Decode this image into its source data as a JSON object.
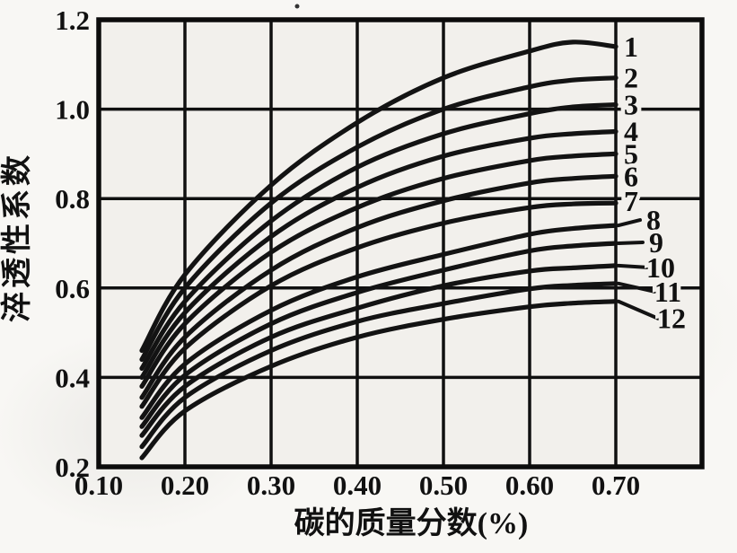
{
  "figure_title": "",
  "colors": {
    "curve": "#131313",
    "grid": "#101010",
    "border": "#0c0c0c",
    "plot_fill": "#f2f0ec",
    "background": "#f8f7f4",
    "text": "#111111"
  },
  "chart_data": {
    "type": "line",
    "title": "",
    "xlabel": "碳的质量分数(%)",
    "ylabel": "淬透性系数",
    "xlim": [
      0.1,
      0.8
    ],
    "ylim": [
      0.2,
      1.2
    ],
    "grid": true,
    "legend_position": "right-inside",
    "x_tick_labels": [
      "0.10",
      "0.20",
      "0.30",
      "0.40",
      "0.50",
      "0.60",
      "0.70"
    ],
    "x_tick_values": [
      0.1,
      0.2,
      0.3,
      0.4,
      0.5,
      0.6,
      0.7
    ],
    "y_tick_labels": [
      "0.2",
      "0.4",
      "0.6",
      "0.8",
      "1.0",
      "1.2"
    ],
    "y_tick_values": [
      0.2,
      0.4,
      0.6,
      0.8,
      1.0,
      1.2
    ],
    "x_grid_values": [
      0.1,
      0.2,
      0.3,
      0.4,
      0.5,
      0.6,
      0.7,
      0.8
    ],
    "y_grid_values": [
      0.2,
      0.4,
      0.6,
      0.8,
      1.0,
      1.2
    ],
    "x": [
      0.15,
      0.2,
      0.3,
      0.4,
      0.5,
      0.6,
      0.65,
      0.7
    ],
    "series": [
      {
        "name": "1",
        "values": [
          0.46,
          0.63,
          0.83,
          0.97,
          1.07,
          1.13,
          1.15,
          1.14
        ]
      },
      {
        "name": "2",
        "values": [
          0.44,
          0.6,
          0.79,
          0.915,
          1.0,
          1.05,
          1.065,
          1.07
        ]
      },
      {
        "name": "3",
        "values": [
          0.42,
          0.57,
          0.75,
          0.87,
          0.945,
          0.99,
          1.005,
          1.01
        ]
      },
      {
        "name": "4",
        "values": [
          0.4,
          0.545,
          0.715,
          0.825,
          0.895,
          0.935,
          0.945,
          0.95
        ]
      },
      {
        "name": "5",
        "values": [
          0.38,
          0.52,
          0.68,
          0.78,
          0.845,
          0.885,
          0.895,
          0.9
        ]
      },
      {
        "name": "6",
        "values": [
          0.355,
          0.49,
          0.64,
          0.735,
          0.795,
          0.835,
          0.845,
          0.85
        ]
      },
      {
        "name": "7",
        "values": [
          0.335,
          0.465,
          0.605,
          0.69,
          0.745,
          0.78,
          0.788,
          0.79
        ]
      },
      {
        "name": "8",
        "values": [
          0.31,
          0.43,
          0.55,
          0.625,
          0.675,
          0.72,
          0.733,
          0.74
        ]
      },
      {
        "name": "9",
        "values": [
          0.29,
          0.405,
          0.52,
          0.59,
          0.64,
          0.683,
          0.694,
          0.7
        ]
      },
      {
        "name": "10",
        "values": [
          0.27,
          0.38,
          0.49,
          0.555,
          0.605,
          0.638,
          0.645,
          0.65
        ]
      },
      {
        "name": "11",
        "values": [
          0.245,
          0.355,
          0.46,
          0.525,
          0.565,
          0.598,
          0.606,
          0.61
        ]
      },
      {
        "name": "12",
        "values": [
          0.22,
          0.325,
          0.425,
          0.49,
          0.53,
          0.558,
          0.566,
          0.57
        ]
      }
    ]
  }
}
